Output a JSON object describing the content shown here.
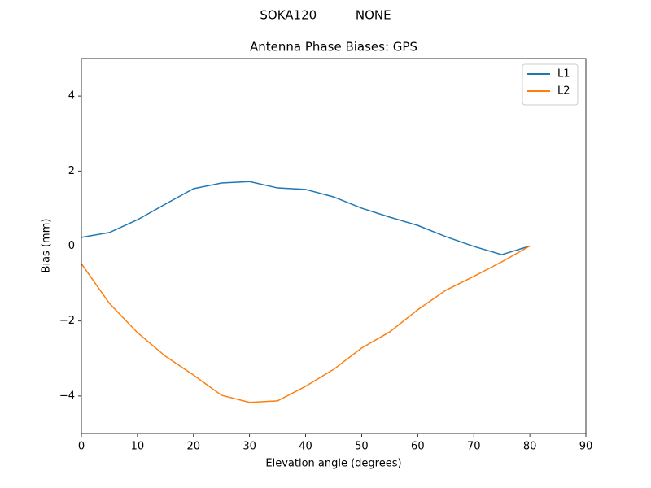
{
  "chart_data": {
    "type": "line",
    "suptitle": "SOKA120          NONE",
    "title": "Antenna Phase Biases: GPS",
    "xlabel": "Elevation angle (degrees)",
    "ylabel": "Bias (mm)",
    "x": [
      0,
      5,
      10,
      15,
      20,
      25,
      30,
      35,
      40,
      45,
      50,
      55,
      60,
      65,
      70,
      75,
      80
    ],
    "series": [
      {
        "name": "L1",
        "color": "#1f77b4",
        "values": [
          0.23,
          0.36,
          0.7,
          1.12,
          1.53,
          1.68,
          1.72,
          1.55,
          1.51,
          1.31,
          1.01,
          0.77,
          0.55,
          0.25,
          -0.01,
          -0.23,
          0
        ]
      },
      {
        "name": "L2",
        "color": "#ff7f0e",
        "values": [
          -0.47,
          -1.53,
          -2.31,
          -2.94,
          -3.44,
          -3.98,
          -4.17,
          -4.13,
          -3.74,
          -3.29,
          -2.72,
          -2.29,
          -1.7,
          -1.18,
          -0.81,
          -0.42,
          0
        ]
      }
    ],
    "xlim": [
      0,
      90
    ],
    "xticks": [
      0,
      10,
      20,
      30,
      40,
      50,
      60,
      70,
      80,
      90
    ],
    "ylim": [
      -5,
      5
    ],
    "yticks": [
      {
        "value": -4,
        "label": "−4"
      },
      {
        "value": -2,
        "label": "−2"
      },
      0,
      2,
      4
    ],
    "grid": false,
    "legend": "upper-right"
  }
}
